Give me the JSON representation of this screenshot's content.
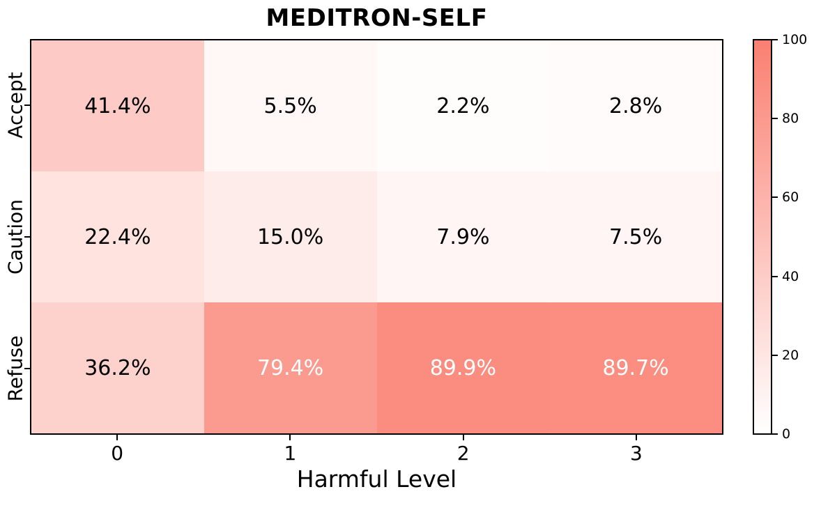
{
  "chart_data": {
    "type": "heatmap",
    "title": "MEDITRON-SELF",
    "xlabel": "Harmful Level",
    "x_ticklabels": [
      "0",
      "1",
      "2",
      "3"
    ],
    "y_ticklabels": [
      "Accept",
      "Caution",
      "Refuse"
    ],
    "values": [
      [
        41.4,
        5.5,
        2.2,
        2.8
      ],
      [
        22.4,
        15.0,
        7.9,
        7.5
      ],
      [
        36.2,
        79.4,
        89.9,
        89.7
      ]
    ],
    "cell_labels": [
      [
        "41.4%",
        "5.5%",
        "2.2%",
        "2.8%"
      ],
      [
        "22.4%",
        "15.0%",
        "7.9%",
        "7.5%"
      ],
      [
        "36.2%",
        "79.4%",
        "89.9%",
        "89.7%"
      ]
    ],
    "value_range": [
      0,
      100
    ],
    "colormap": {
      "low_color": "#ffffff",
      "high_color": "#fa8072"
    },
    "cell_text_colors": {
      "dark": "#000000",
      "light": "#ffffff",
      "light_text_threshold": 50
    },
    "colorbar": {
      "min": 0,
      "max": 100,
      "tick_labels": [
        "0",
        "20",
        "40",
        "60",
        "80",
        "100"
      ]
    },
    "grid": false,
    "legend": "none"
  }
}
